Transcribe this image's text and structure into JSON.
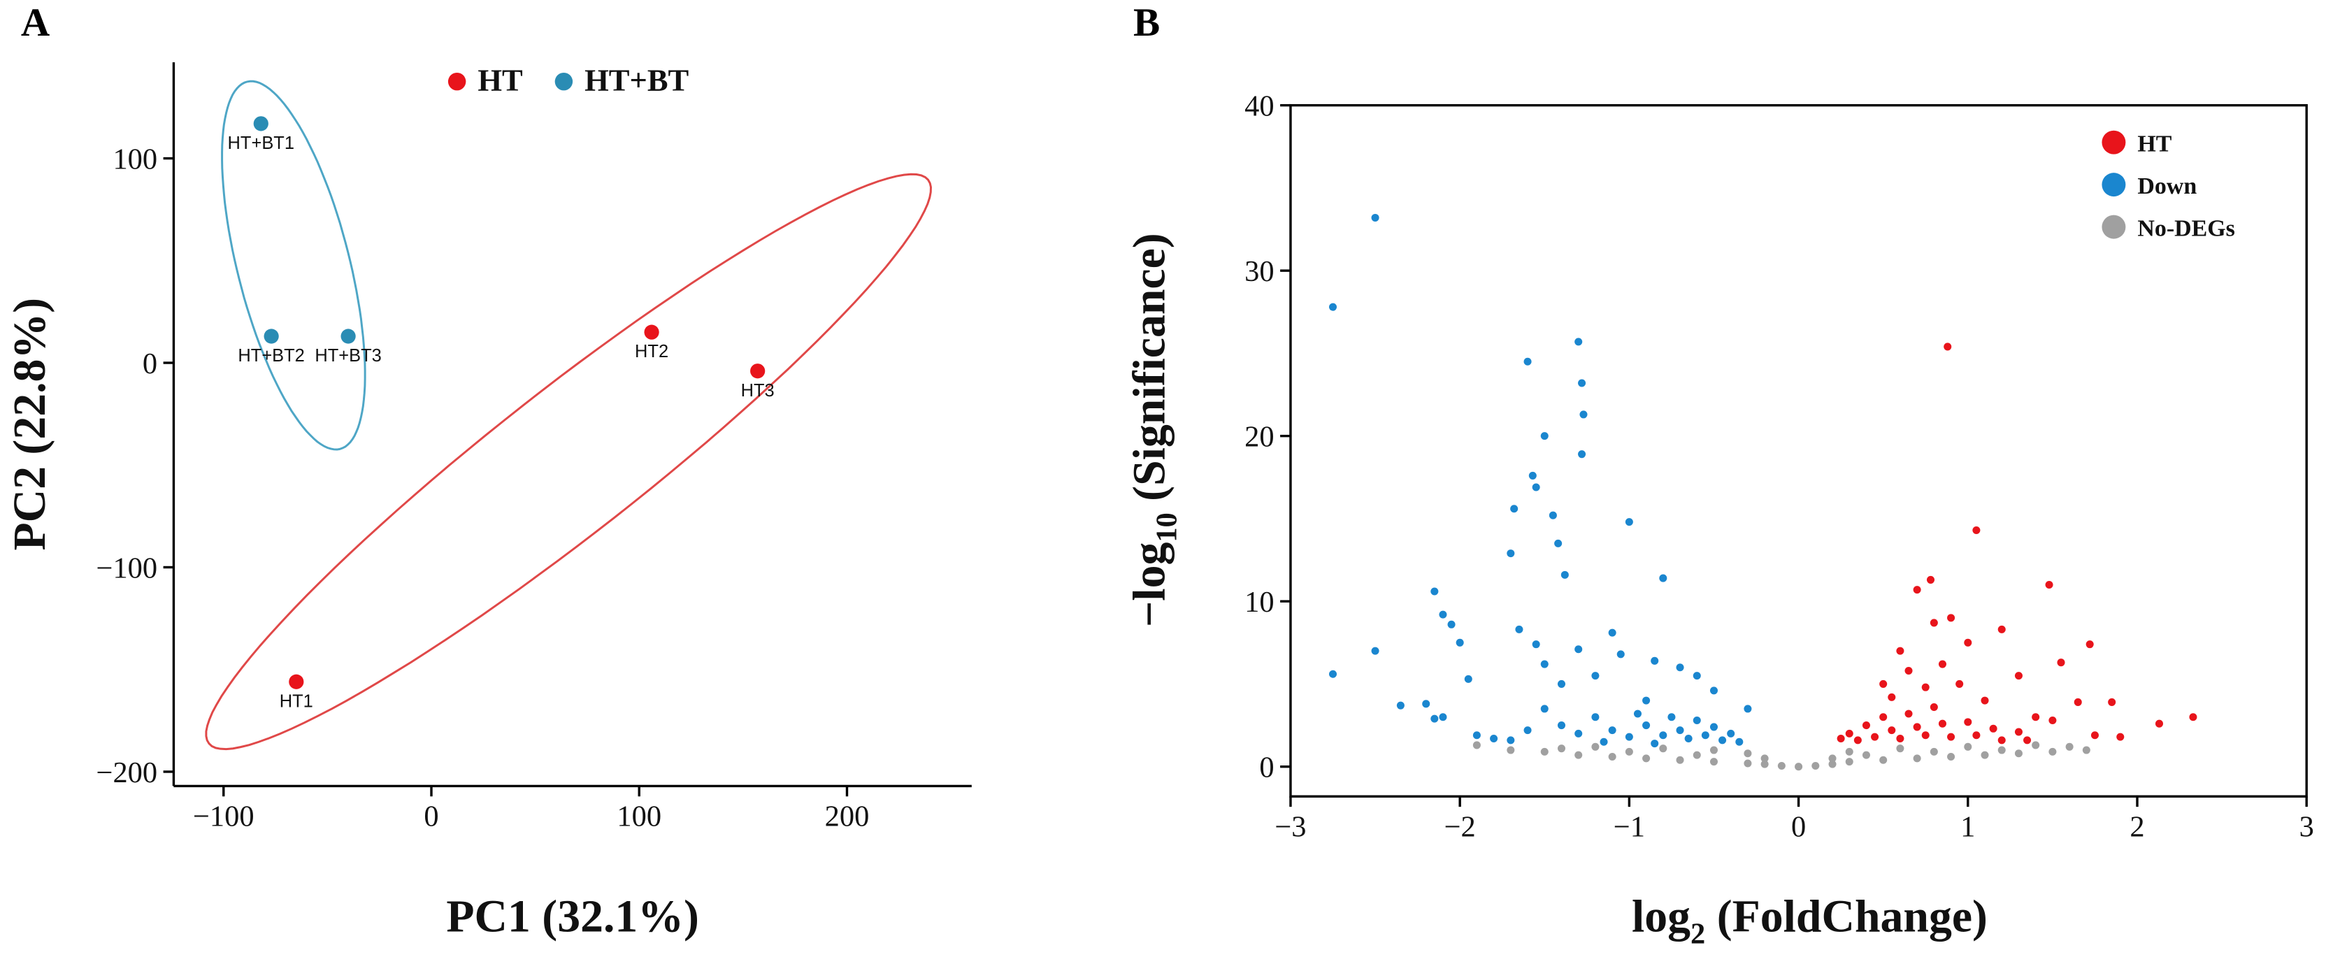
{
  "chart_data": [
    {
      "type": "scatter",
      "panel": "A",
      "x_label": "PC1 (32.1%)",
      "y_label": "PC2 (22.8%)",
      "xlim": [
        -124,
        260
      ],
      "ylim": [
        -207,
        147
      ],
      "xticks": [
        {
          "value": -100,
          "label": "−100"
        },
        0,
        100,
        200
      ],
      "yticks": [
        {
          "value": -200,
          "label": "−200"
        },
        {
          "value": -100,
          "label": "−100"
        },
        0,
        100
      ],
      "ellipses": true,
      "series": [
        {
          "name": "HT",
          "color": "#e8141b",
          "ellipse_color": "#e04848",
          "x": [
            -65,
            106,
            157
          ],
          "y": [
            -156,
            15,
            -4
          ],
          "labels": [
            "HT1",
            "HT2",
            "HT3"
          ]
        },
        {
          "name": "HT+BT",
          "color": "#2a8cb4",
          "ellipse_color": "#4ea6c6",
          "x": [
            -82,
            -77,
            -40
          ],
          "y": [
            117,
            13,
            13
          ],
          "labels": [
            "HT+BT1",
            "HT+BT2",
            "HT+BT3"
          ]
        }
      ]
    },
    {
      "type": "scatter",
      "panel": "B",
      "x_label": [
        "log",
        "2",
        " (FoldChange)"
      ],
      "y_label": [
        "−log",
        "10",
        " (Significance)"
      ],
      "xlim": [
        -3,
        3
      ],
      "ylim": [
        -1.8,
        40
      ],
      "xticks": [
        {
          "value": -3,
          "label": "−3"
        },
        {
          "value": -2,
          "label": "−2"
        },
        {
          "value": -1,
          "label": "−1"
        },
        0,
        1,
        2,
        3
      ],
      "yticks": [
        0,
        10,
        20,
        30,
        40
      ],
      "ellipses": false,
      "series": [
        {
          "name": "HT",
          "color": "#e8141b",
          "x": [
            0.88,
            1.05,
            1.48,
            0.78,
            0.7,
            0.9,
            0.8,
            0.6,
            1.0,
            1.2,
            1.72,
            1.55,
            1.65,
            1.85,
            1.75,
            1.9,
            2.13,
            2.33,
            0.5,
            0.55,
            0.65,
            0.75,
            0.85,
            0.95,
            1.1,
            1.3,
            1.4,
            1.5,
            0.3,
            0.35,
            0.4,
            0.45,
            0.5,
            0.55,
            0.6,
            0.65,
            0.7,
            0.75,
            0.8,
            0.85,
            0.9,
            1.0,
            1.05,
            1.15,
            1.2,
            1.3,
            1.35,
            0.25
          ],
          "y": [
            25.4,
            14.3,
            11.0,
            11.3,
            10.7,
            9.0,
            8.7,
            7.0,
            7.5,
            8.3,
            7.4,
            6.3,
            3.9,
            3.9,
            1.9,
            1.8,
            2.6,
            3.0,
            5.0,
            4.2,
            5.8,
            4.8,
            6.2,
            5.0,
            4.0,
            5.5,
            3.0,
            2.8,
            2.0,
            1.6,
            2.5,
            1.8,
            3.0,
            2.2,
            1.7,
            3.2,
            2.4,
            1.9,
            3.6,
            2.6,
            1.8,
            2.7,
            1.9,
            2.3,
            1.6,
            2.1,
            1.6,
            1.7
          ]
        },
        {
          "name": "Down",
          "color": "#1a86cf",
          "x": [
            -2.75,
            -2.5,
            -2.75,
            -2.5,
            -2.35,
            -2.2,
            -2.15,
            -2.1,
            -2.05,
            -2.0,
            -1.95,
            -2.1,
            -2.15,
            -1.9,
            -1.8,
            -1.7,
            -1.68,
            -1.6,
            -1.57,
            -1.55,
            -1.5,
            -1.45,
            -1.42,
            -1.38,
            -1.3,
            -1.28,
            -1.27,
            -1.28,
            -1.0,
            -0.8,
            -1.65,
            -1.55,
            -1.5,
            -1.4,
            -1.3,
            -1.2,
            -1.1,
            -1.05,
            -0.9,
            -0.85,
            -0.7,
            -0.6,
            -0.5,
            -1.5,
            -1.4,
            -1.3,
            -1.2,
            -1.1,
            -1.0,
            -0.95,
            -0.9,
            -0.8,
            -0.75,
            -0.7,
            -0.65,
            -0.6,
            -0.55,
            -0.5,
            -0.45,
            -0.4,
            -0.35,
            -0.3,
            -1.6,
            -1.7,
            -1.15,
            -0.85
          ],
          "y": [
            27.8,
            33.2,
            5.6,
            7,
            3.7,
            3.8,
            10.6,
            9.2,
            8.6,
            7.5,
            5.3,
            3,
            2.9,
            1.9,
            1.7,
            12.9,
            15.6,
            24.5,
            17.6,
            16.9,
            20,
            15.2,
            13.5,
            11.6,
            25.7,
            23.2,
            21.3,
            18.9,
            14.8,
            11.4,
            8.3,
            7.4,
            6.2,
            5.0,
            7.1,
            5.5,
            8.1,
            6.8,
            4.0,
            6.4,
            6.0,
            5.5,
            4.6,
            3.5,
            2.5,
            2.0,
            3.0,
            2.2,
            1.8,
            3.2,
            2.5,
            1.9,
            3.0,
            2.2,
            1.7,
            2.8,
            1.9,
            2.4,
            1.6,
            2.0,
            1.5,
            3.5,
            2.2,
            1.6,
            1.5,
            1.4
          ]
        },
        {
          "name": "No-DEGs",
          "color": "#a0a0a0",
          "x": [
            -1.9,
            -1.7,
            -1.5,
            -1.3,
            -1.1,
            -0.9,
            -0.7,
            -0.5,
            -0.3,
            -0.2,
            -0.1,
            0,
            0.1,
            0.2,
            0.3,
            0.5,
            0.7,
            0.9,
            1.1,
            1.3,
            1.5,
            1.7,
            -1.2,
            -0.8,
            -0.5,
            -0.3,
            -0.2,
            0.2,
            0.3,
            0.6,
            1.0,
            1.4,
            1.6,
            -0.6,
            0.4,
            -1.4,
            1.2,
            -1.0,
            0.8
          ],
          "y": [
            1.3,
            1.0,
            0.9,
            0.7,
            0.6,
            0.5,
            0.4,
            0.3,
            0.2,
            0.15,
            0.05,
            0,
            0.05,
            0.15,
            0.3,
            0.4,
            0.5,
            0.6,
            0.7,
            0.8,
            0.9,
            1.0,
            1.2,
            1.1,
            1.0,
            0.8,
            0.5,
            0.5,
            0.9,
            1.1,
            1.2,
            1.3,
            1.2,
            0.7,
            0.7,
            1.1,
            1.0,
            0.9,
            0.9
          ]
        }
      ]
    }
  ]
}
